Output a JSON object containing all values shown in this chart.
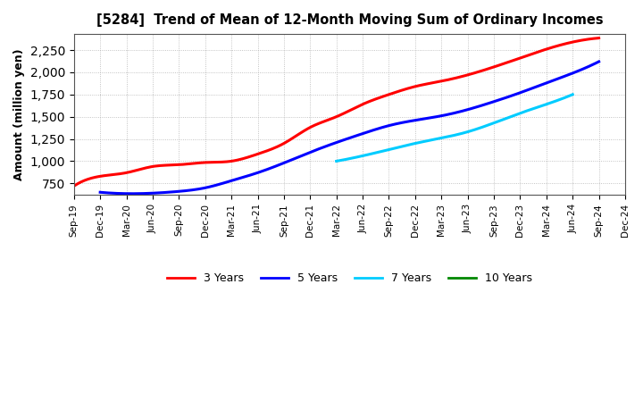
{
  "title": "[5284]  Trend of Mean of 12-Month Moving Sum of Ordinary Incomes",
  "ylabel": "Amount (million yen)",
  "background_color": "#ffffff",
  "plot_bg_color": "#ffffff",
  "grid_color": "#aaaaaa",
  "ylim": [
    620,
    2430
  ],
  "yticks": [
    750,
    1000,
    1250,
    1500,
    1750,
    2000,
    2250
  ],
  "series": {
    "3years": {
      "color": "#ff0000",
      "label": "3 Years",
      "x_indices": [
        0,
        1,
        2,
        3,
        4,
        5,
        6,
        7,
        8,
        9,
        10,
        11,
        12,
        13,
        14,
        15,
        16,
        17,
        18,
        19,
        20
      ],
      "data": [
        720,
        830,
        870,
        940,
        960,
        985,
        1000,
        1080,
        1200,
        1380,
        1500,
        1640,
        1750,
        1840,
        1900,
        1970,
        2060,
        2160,
        2260,
        2340,
        2385
      ]
    },
    "5years": {
      "color": "#0000ff",
      "label": "5 Years",
      "x_indices": [
        1,
        2,
        3,
        4,
        5,
        6,
        7,
        8,
        9,
        10,
        11,
        12,
        13,
        14,
        15,
        16,
        17,
        18,
        19,
        20
      ],
      "data": [
        650,
        635,
        640,
        660,
        700,
        780,
        870,
        980,
        1100,
        1210,
        1310,
        1400,
        1460,
        1510,
        1580,
        1670,
        1770,
        1880,
        1990,
        2120
      ]
    },
    "7years": {
      "color": "#00ccff",
      "label": "7 Years",
      "x_indices": [
        10,
        11,
        12,
        13,
        14,
        15,
        16,
        17,
        18,
        19
      ],
      "data": [
        1000,
        1060,
        1130,
        1200,
        1260,
        1330,
        1430,
        1540,
        1640,
        1750
      ]
    },
    "10years": {
      "color": "#008800",
      "label": "10 Years",
      "x_indices": [],
      "data": []
    }
  },
  "xtick_labels": [
    "Sep-19",
    "Dec-19",
    "Mar-20",
    "Jun-20",
    "Sep-20",
    "Dec-20",
    "Mar-21",
    "Jun-21",
    "Sep-21",
    "Dec-21",
    "Mar-22",
    "Jun-22",
    "Sep-22",
    "Dec-22",
    "Mar-23",
    "Jun-23",
    "Sep-23",
    "Dec-23",
    "Mar-24",
    "Jun-24",
    "Sep-24",
    "Dec-24"
  ],
  "n_ticks": 22
}
